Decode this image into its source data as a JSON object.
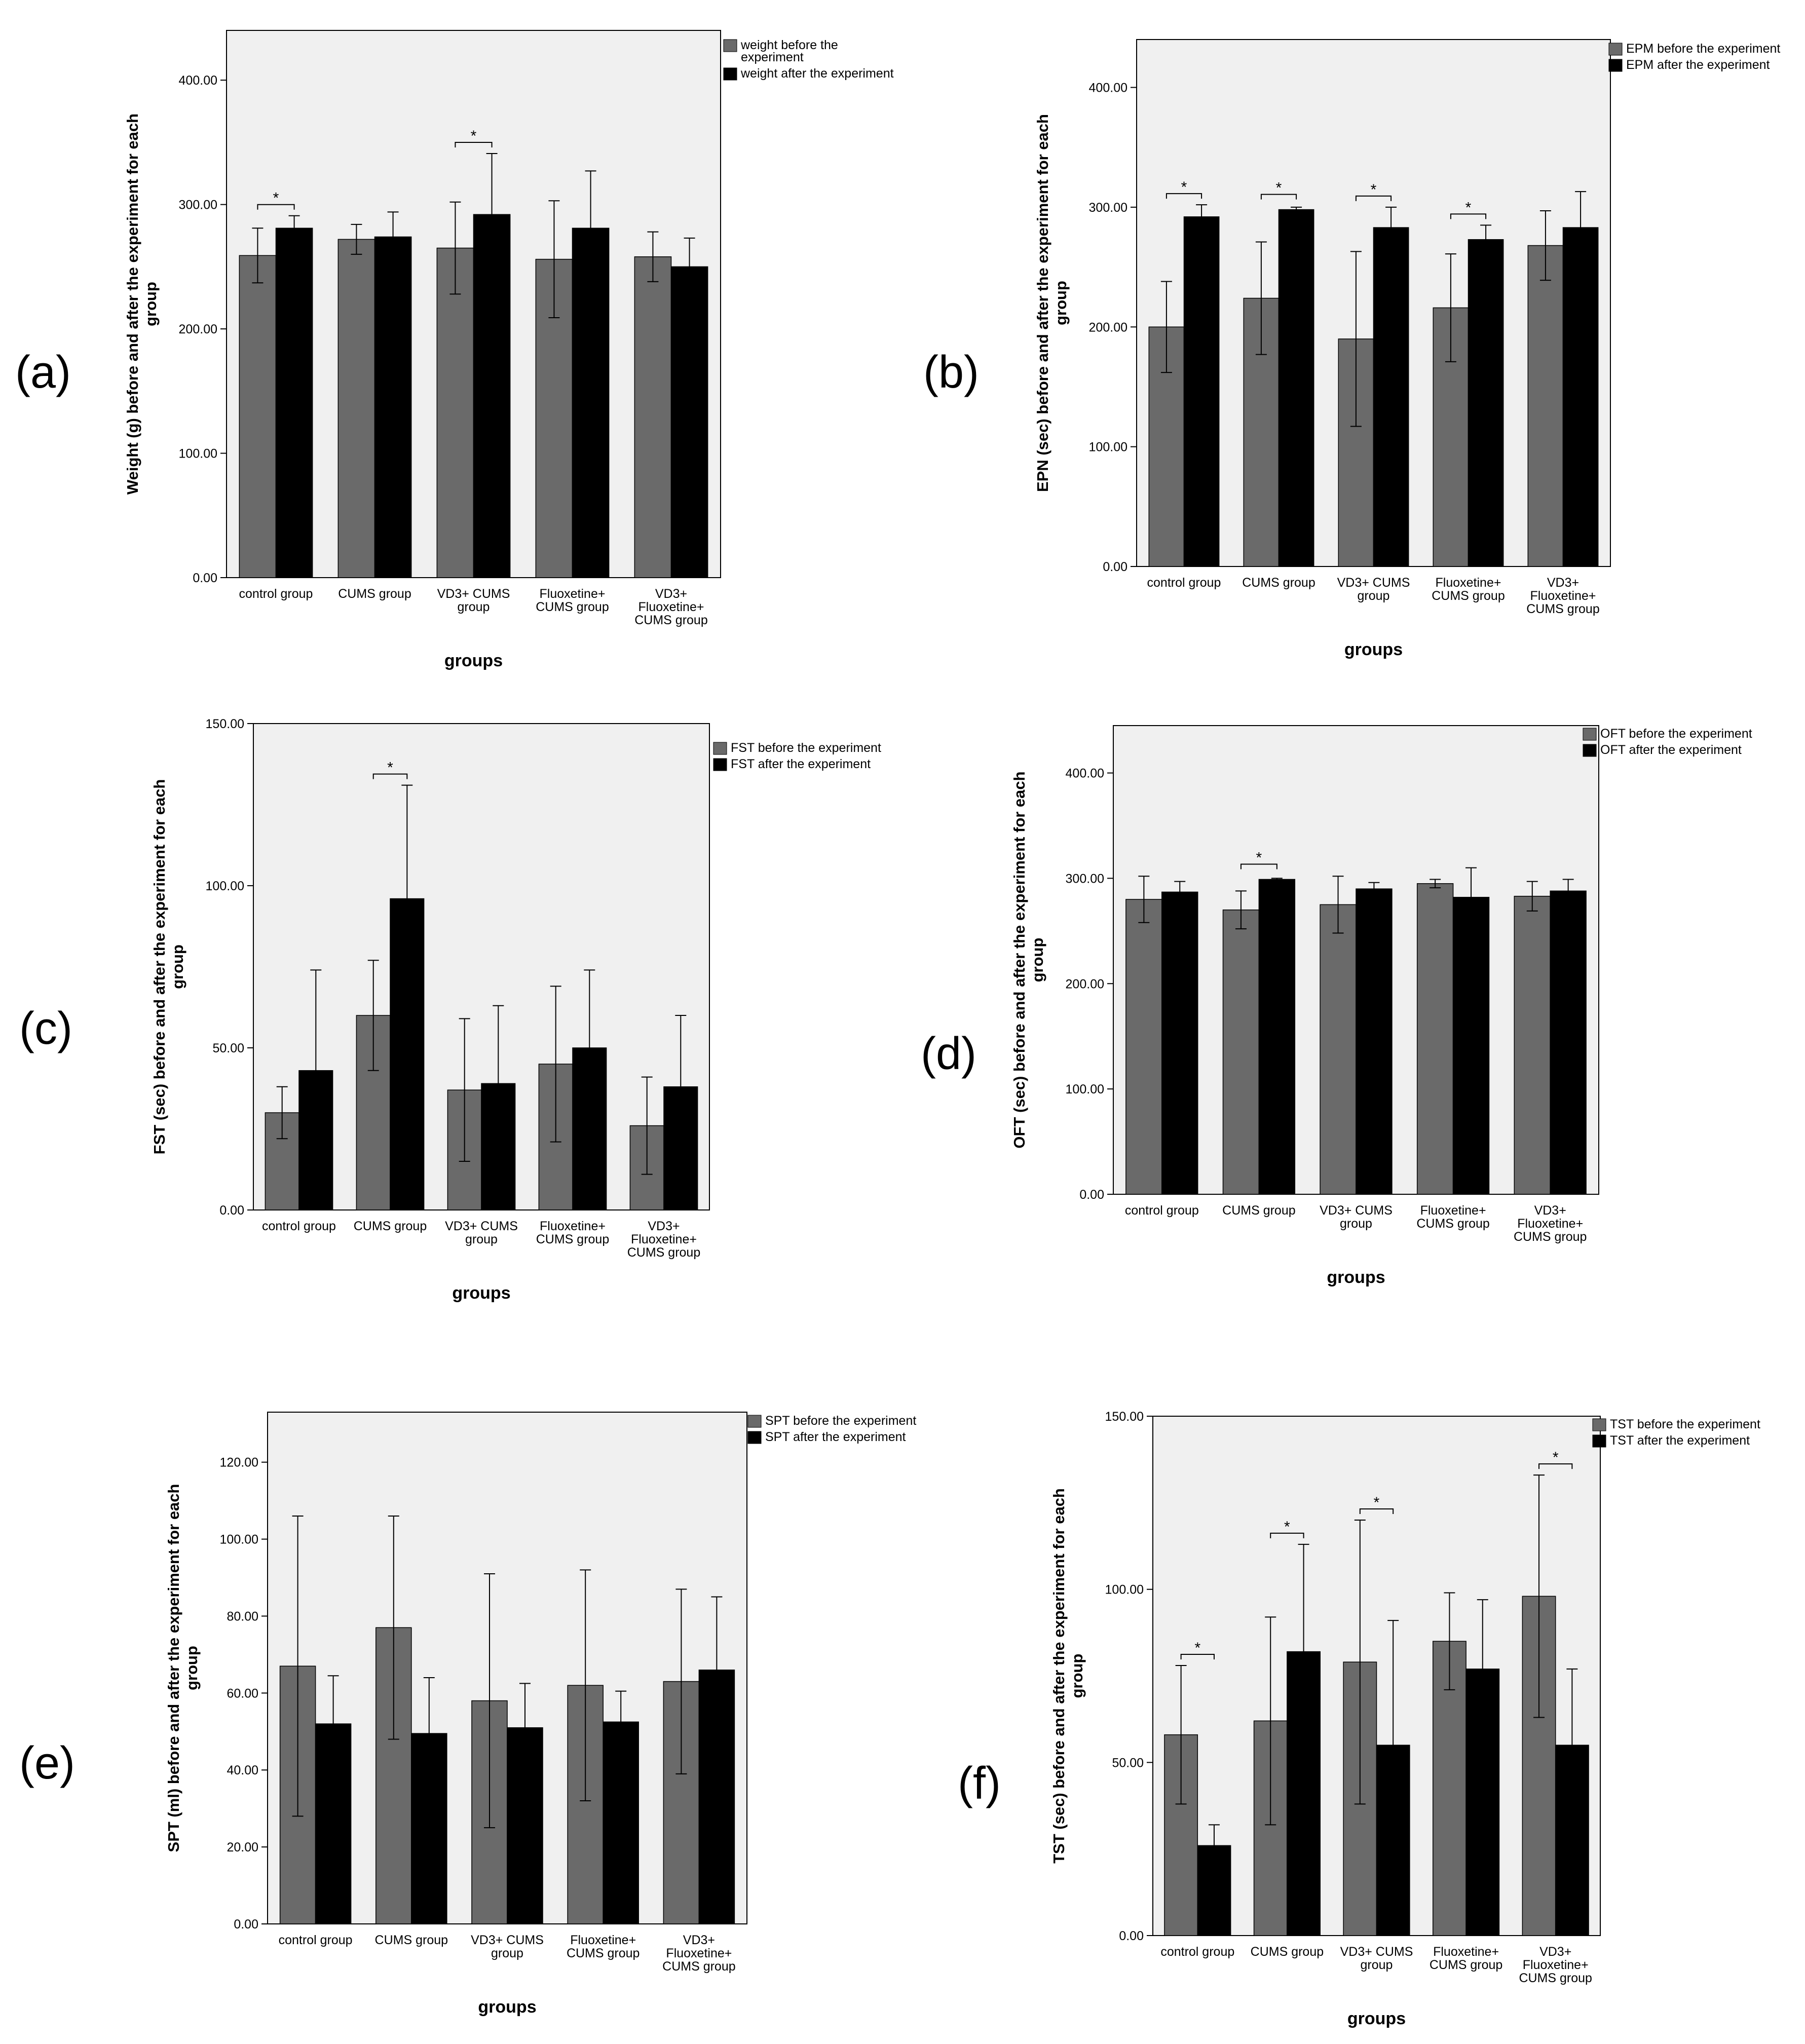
{
  "figure": {
    "colors": {
      "before": "#6a6a6a",
      "after": "#000000",
      "plot_bg": "#f0f0f0"
    }
  },
  "chart_data": [
    {
      "panel": "(a)",
      "type": "bar",
      "ylabel": "Weight (g) before and after the experiment for each group",
      "xlabel": "groups",
      "ylim": [
        0,
        440
      ],
      "yticks": [
        "0.00",
        "100.00",
        "200.00",
        "300.00",
        "400.00"
      ],
      "ytick_values": [
        0,
        100,
        200,
        300,
        400
      ],
      "categories": [
        [
          "control group"
        ],
        [
          "CUMS group"
        ],
        [
          "VD3+ CUMS",
          "group"
        ],
        [
          "Fluoxetine+",
          "CUMS group"
        ],
        [
          "VD3+",
          "Fluoxetine+",
          "CUMS group"
        ]
      ],
      "legend": [
        [
          "weight before the",
          "experiment"
        ],
        [
          "weight after the experiment"
        ]
      ],
      "series": [
        {
          "name": "weight before the experiment",
          "values": [
            259,
            272,
            265,
            256,
            258
          ],
          "err": [
            22,
            12,
            37,
            47,
            20
          ]
        },
        {
          "name": "weight after the experiment",
          "values": [
            281,
            274,
            292,
            281,
            250
          ],
          "err": [
            10,
            20,
            49,
            46,
            23
          ]
        }
      ],
      "significance": [
        {
          "category": 0,
          "label": "*"
        },
        {
          "category": 2,
          "label": "*"
        }
      ]
    },
    {
      "panel": "(b)",
      "type": "bar",
      "ylabel": "EPN (sec) before and after the experiment for each group",
      "xlabel": "groups",
      "ylim": [
        0,
        440
      ],
      "yticks": [
        "0.00",
        "100.00",
        "200.00",
        "300.00",
        "400.00"
      ],
      "ytick_values": [
        0,
        100,
        200,
        300,
        400
      ],
      "categories": [
        [
          "control group"
        ],
        [
          "CUMS group"
        ],
        [
          "VD3+ CUMS",
          "group"
        ],
        [
          "Fluoxetine+",
          "CUMS group"
        ],
        [
          "VD3+",
          "Fluoxetine+",
          "CUMS group"
        ]
      ],
      "legend": [
        [
          "EPM before the experiment"
        ],
        [
          "EPM after the experiment"
        ]
      ],
      "series": [
        {
          "name": "EPM before the experiment",
          "values": [
            200,
            224,
            190,
            216,
            268
          ],
          "err": [
            38,
            47,
            73,
            45,
            29
          ]
        },
        {
          "name": "EPM after the experiment",
          "values": [
            292,
            298,
            283,
            273,
            283
          ],
          "err": [
            10,
            2,
            17,
            12,
            30
          ]
        }
      ],
      "significance": [
        {
          "category": 0,
          "label": "*"
        },
        {
          "category": 1,
          "label": "*"
        },
        {
          "category": 2,
          "label": "*"
        },
        {
          "category": 3,
          "label": "*"
        }
      ]
    },
    {
      "panel": "(c)",
      "type": "bar",
      "ylabel": "FST (sec) before and after the experiment for each group",
      "xlabel": "groups",
      "ylim": [
        0,
        150
      ],
      "yticks": [
        "0.00",
        "50.00",
        "100.00",
        "150.00"
      ],
      "ytick_values": [
        0,
        50,
        100,
        150
      ],
      "categories": [
        [
          "control group"
        ],
        [
          "CUMS group"
        ],
        [
          "VD3+ CUMS",
          "group"
        ],
        [
          "Fluoxetine+",
          "CUMS group"
        ],
        [
          "VD3+",
          "Fluoxetine+",
          "CUMS group"
        ]
      ],
      "legend": [
        [
          "FST before the experiment"
        ],
        [
          "FST after the experiment"
        ]
      ],
      "series": [
        {
          "name": "FST before the experiment",
          "values": [
            30,
            60,
            37,
            45,
            26
          ],
          "err": [
            8,
            17,
            22,
            24,
            15
          ]
        },
        {
          "name": "FST after the experiment",
          "values": [
            43,
            96,
            39,
            50,
            38
          ],
          "err": [
            31,
            35,
            24,
            24,
            22
          ]
        }
      ],
      "significance": [
        {
          "category": 1,
          "label": "*"
        }
      ]
    },
    {
      "panel": "(d)",
      "type": "bar",
      "ylabel": "OFT (sec) before and after the experiment for each group",
      "xlabel": "groups",
      "ylim": [
        0,
        445
      ],
      "yticks": [
        "0.00",
        "100.00",
        "200.00",
        "300.00",
        "400.00"
      ],
      "ytick_values": [
        0,
        100,
        200,
        300,
        400
      ],
      "categories": [
        [
          "control group"
        ],
        [
          "CUMS group"
        ],
        [
          "VD3+ CUMS",
          "group"
        ],
        [
          "Fluoxetine+",
          "CUMS group"
        ],
        [
          "VD3+",
          "Fluoxetine+",
          "CUMS group"
        ]
      ],
      "legend": [
        [
          "OFT before the experiment"
        ],
        [
          "OFT after the experiment"
        ]
      ],
      "series": [
        {
          "name": "OFT before the experiment",
          "values": [
            280,
            270,
            275,
            295,
            283
          ],
          "err": [
            22,
            18,
            27,
            4,
            14
          ]
        },
        {
          "name": "OFT after the experiment",
          "values": [
            287,
            299,
            290,
            282,
            288
          ],
          "err": [
            10,
            1,
            6,
            28,
            11
          ]
        }
      ],
      "significance": [
        {
          "category": 1,
          "label": "*"
        }
      ]
    },
    {
      "panel": "(e)",
      "type": "bar",
      "ylabel": "SPT (ml) before and after the experiment for each group",
      "xlabel": "groups",
      "ylim": [
        0,
        133
      ],
      "yticks": [
        "0.00",
        "20.00",
        "40.00",
        "60.00",
        "80.00",
        "100.00",
        "120.00"
      ],
      "ytick_values": [
        0,
        20,
        40,
        60,
        80,
        100,
        120
      ],
      "categories": [
        [
          "control group"
        ],
        [
          "CUMS group"
        ],
        [
          "VD3+ CUMS",
          "group"
        ],
        [
          "Fluoxetine+",
          "CUMS group"
        ],
        [
          "VD3+",
          "Fluoxetine+",
          "CUMS group"
        ]
      ],
      "legend": [
        [
          "SPT before the experiment"
        ],
        [
          "SPT after the experiment"
        ]
      ],
      "series": [
        {
          "name": "SPT before the experiment",
          "values": [
            67,
            77,
            58,
            62,
            63
          ],
          "err": [
            39,
            29,
            33,
            30,
            24
          ]
        },
        {
          "name": "SPT after the experiment",
          "values": [
            52,
            49.5,
            51,
            52.5,
            66
          ],
          "err": [
            12.5,
            14.5,
            11.5,
            8,
            19
          ]
        }
      ],
      "significance": []
    },
    {
      "panel": "(f)",
      "type": "bar",
      "ylabel": "TST (sec) before and after the experiment for each group",
      "xlabel": "groups",
      "ylim": [
        0,
        150
      ],
      "yticks": [
        "0.00",
        "50.00",
        "100.00",
        "150.00"
      ],
      "ytick_values": [
        0,
        50,
        100,
        150
      ],
      "categories": [
        [
          "control group"
        ],
        [
          "CUMS group"
        ],
        [
          "VD3+ CUMS",
          "group"
        ],
        [
          "Fluoxetine+",
          "CUMS group"
        ],
        [
          "VD3+",
          "Fluoxetine+",
          "CUMS group"
        ]
      ],
      "legend": [
        [
          "TST before the experiment"
        ],
        [
          "TST after the experiment"
        ]
      ],
      "series": [
        {
          "name": "TST before the experiment",
          "values": [
            58,
            62,
            79,
            85,
            98
          ],
          "err": [
            20,
            30,
            41,
            14,
            35
          ]
        },
        {
          "name": "TST after the experiment",
          "values": [
            26,
            82,
            55,
            77,
            55
          ],
          "err": [
            6,
            31,
            36,
            20,
            22
          ]
        }
      ],
      "significance": [
        {
          "category": 0,
          "label": "*"
        },
        {
          "category": 1,
          "label": "*"
        },
        {
          "category": 2,
          "label": "*"
        },
        {
          "category": 4,
          "label": "*"
        }
      ]
    }
  ]
}
